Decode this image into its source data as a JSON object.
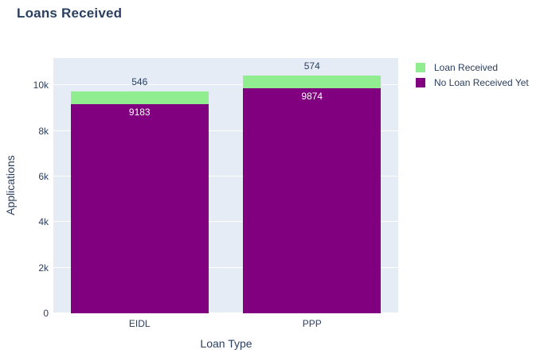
{
  "title": "Loans Received",
  "chart_data": {
    "type": "bar",
    "stacked": true,
    "orientation": "vertical",
    "categories": [
      "EIDL",
      "PPP"
    ],
    "series": [
      {
        "name": "No Loan Received Yet",
        "color": "#800080",
        "values": [
          9183,
          9874
        ],
        "label_placement": "inside-top",
        "label_color": "#ffffff"
      },
      {
        "name": "Loan Received",
        "color": "#90ee90",
        "values": [
          546,
          574
        ],
        "label_placement": "outside-top",
        "label_color": "#2a3f5f"
      }
    ],
    "stack_order": "first-series-at-bottom",
    "xlabel": "Loan Type",
    "ylabel": "Applications",
    "ylim": [
      0,
      11200
    ],
    "yticks": {
      "values": [
        0,
        2000,
        4000,
        6000,
        8000,
        10000
      ],
      "labels": [
        "0",
        "2k",
        "4k",
        "6k",
        "8k",
        "10k"
      ]
    },
    "legend": {
      "position": "top-right-outside",
      "items": [
        {
          "label": "Loan Received",
          "color": "#90ee90"
        },
        {
          "label": "No Loan Received Yet",
          "color": "#800080"
        }
      ]
    },
    "grid": true,
    "plot_bg_color": "#e5ecf6",
    "grid_color": "#ffffff",
    "paper_bg_color": "#ffffff",
    "text_color": "#2a3f5f",
    "bargap": 0.2
  }
}
